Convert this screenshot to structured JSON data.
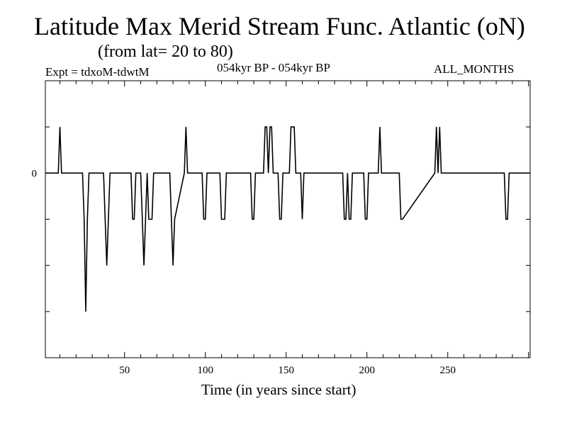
{
  "header": {
    "title": "Latitude Max Merid Stream Func. Atlantic (oN)",
    "subtitle": "(from lat= 20 to 80)",
    "expt": "Expt = tdxoM-tdwtM",
    "period": "054kyr BP - 054kyr BP",
    "months": "ALL_MONTHS"
  },
  "chart_data": {
    "type": "line",
    "title": "Latitude Max Merid Stream Func. Atlantic (oN)",
    "xlabel": "Time (in years since start)",
    "ylabel": "",
    "xlim": [
      1,
      301
    ],
    "ylim": [
      -4,
      2
    ],
    "x_ticks": [
      50,
      100,
      150,
      200,
      250
    ],
    "y_ticks": [
      {
        "value": 0,
        "label": "0"
      }
    ],
    "grid": false,
    "legend": "none",
    "line_color": "#000000",
    "series": [
      {
        "x": [
          1,
          9,
          10,
          11,
          12,
          13,
          24,
          25,
          26,
          27,
          28,
          37,
          38,
          39,
          40,
          41,
          54,
          55,
          56,
          57,
          60,
          61,
          62,
          63,
          64,
          65,
          66,
          67,
          68,
          78,
          79,
          80,
          81,
          87,
          88,
          89,
          98,
          99,
          100,
          101,
          109,
          110,
          111,
          112,
          113,
          128,
          129,
          130,
          131,
          136,
          137,
          138,
          139,
          140,
          141,
          142,
          145,
          146,
          147,
          148,
          152,
          153,
          154,
          155,
          156,
          159,
          160,
          161,
          185,
          186,
          187,
          188,
          189,
          190,
          191,
          198,
          199,
          200,
          201,
          207,
          208,
          209,
          220,
          221,
          222,
          242,
          243,
          244,
          245,
          246,
          285,
          286,
          287,
          288,
          301
        ],
        "y": [
          0,
          0,
          1,
          0,
          0,
          0,
          0,
          -1,
          -3,
          -1,
          0,
          0,
          -1,
          -2,
          -1,
          0,
          0,
          -1,
          -1,
          0,
          0,
          -1,
          -2,
          -1,
          0,
          -1,
          -1,
          -1,
          0,
          0,
          -1,
          -2,
          -1,
          0,
          1,
          0,
          0,
          -1,
          -1,
          0,
          0,
          -1,
          -1,
          -1,
          0,
          0,
          -1,
          -1,
          0,
          0,
          1,
          1,
          0,
          1,
          1,
          0,
          0,
          -1,
          -1,
          0,
          0,
          1,
          1,
          1,
          0,
          0,
          -1,
          0,
          0,
          -1,
          -1,
          0,
          -1,
          -1,
          0,
          0,
          -1,
          -1,
          0,
          0,
          1,
          0,
          0,
          -1,
          -1,
          0,
          1,
          0,
          1,
          0,
          0,
          -1,
          -1,
          0,
          0
        ]
      }
    ]
  }
}
